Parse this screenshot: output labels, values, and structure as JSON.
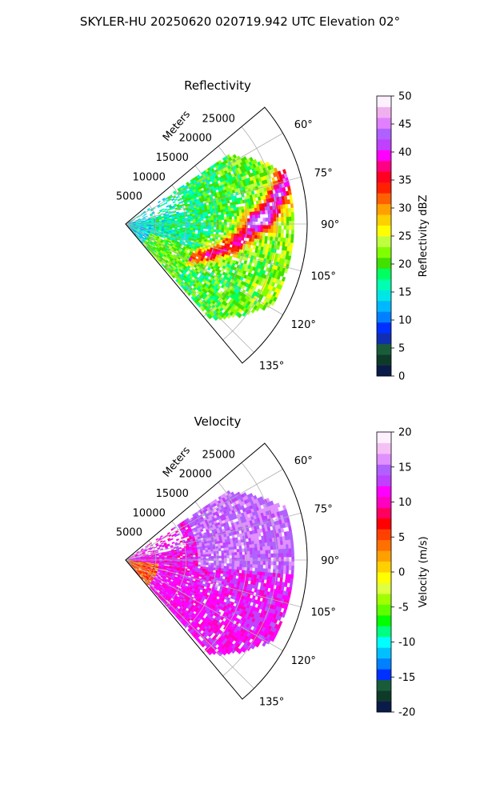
{
  "figure": {
    "suptitle": "SKYLER-HU  20250620  020719.942 UTC Elevation 02°"
  },
  "chart_data": [
    {
      "type": "heatmap",
      "projection": "polar-sector",
      "title": "Reflectivity",
      "radial_axis": {
        "label": "Meters",
        "ticks": [
          5000,
          10000,
          15000,
          20000,
          25000
        ],
        "range": [
          0,
          30000
        ]
      },
      "angular_axis": {
        "range_deg": [
          50,
          140
        ],
        "ticks": [
          60,
          75,
          90,
          105,
          120,
          135
        ],
        "tick_labels": [
          "60°",
          "75°",
          "90°",
          "105°",
          "120°",
          "135°"
        ]
      },
      "grid": true,
      "colorbar": {
        "label": "Reflectivity dBZ",
        "range": [
          0,
          50
        ],
        "ticks": [
          0,
          5,
          10,
          15,
          20,
          25,
          30,
          35,
          40,
          45,
          50
        ],
        "colors": [
          "#0a1a4a",
          "#0f3a2a",
          "#1a5c3a",
          "#0f2fb0",
          "#0030ff",
          "#0080ff",
          "#00b8ff",
          "#00e6e6",
          "#00ffb0",
          "#00ff60",
          "#40e000",
          "#80ff00",
          "#c0ff40",
          "#ffff00",
          "#ffd000",
          "#ffa000",
          "#ff6000",
          "#ff2000",
          "#ff0020",
          "#ff0080",
          "#ff00ff",
          "#c040ff",
          "#b060ff",
          "#e080ff",
          "#f0b0f0",
          "#fff0ff"
        ]
      }
    },
    {
      "type": "heatmap",
      "projection": "polar-sector",
      "title": "Velocity",
      "radial_axis": {
        "label": "Meters",
        "ticks": [
          5000,
          10000,
          15000,
          20000,
          25000
        ],
        "range": [
          0,
          30000
        ]
      },
      "angular_axis": {
        "range_deg": [
          50,
          140
        ],
        "ticks": [
          60,
          75,
          90,
          105,
          120,
          135
        ],
        "tick_labels": [
          "60°",
          "75°",
          "90°",
          "105°",
          "120°",
          "135°"
        ]
      },
      "grid": true,
      "colorbar": {
        "label": "Velocity (m/s)",
        "range": [
          -20,
          20
        ],
        "ticks": [
          -20,
          -15,
          -10,
          -5,
          0,
          5,
          10,
          15,
          20
        ],
        "colors": [
          "#0a1a4a",
          "#0f3a2a",
          "#1a5c3a",
          "#0030ff",
          "#0080ff",
          "#00c0ff",
          "#00ffff",
          "#00ff80",
          "#00ff00",
          "#60ff00",
          "#a0ff00",
          "#e0ff40",
          "#ffff00",
          "#ffd000",
          "#ffa000",
          "#ff7000",
          "#ff4000",
          "#ff0000",
          "#ff0060",
          "#ff00c0",
          "#ff00ff",
          "#c040ff",
          "#b060ff",
          "#e090ff",
          "#f5c0f5",
          "#fff0ff"
        ]
      }
    }
  ]
}
